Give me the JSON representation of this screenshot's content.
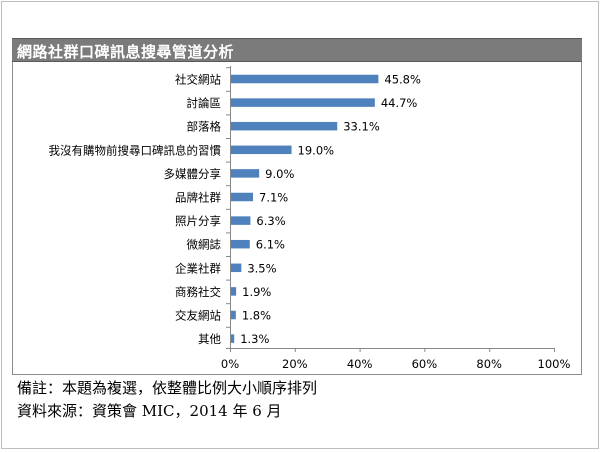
{
  "title": "網路社群口碑訊息搜尋管道分析",
  "chart_data": {
    "type": "bar",
    "orientation": "horizontal",
    "categories": [
      "社交網站",
      "討論區",
      "部落格",
      "我沒有購物前搜尋口碑訊息的習慣",
      "多媒體分享",
      "品牌社群",
      "照片分享",
      "微網誌",
      "企業社群",
      "商務社交",
      "交友網站",
      "其他"
    ],
    "values": [
      45.8,
      44.7,
      33.1,
      19.0,
      9.0,
      7.1,
      6.3,
      6.1,
      3.5,
      1.9,
      1.8,
      1.3
    ],
    "value_labels": [
      "45.8%",
      "44.7%",
      "33.1%",
      "19.0%",
      "9.0%",
      "7.1%",
      "6.3%",
      "6.1%",
      "3.5%",
      "1.9%",
      "1.8%",
      "1.3%"
    ],
    "xlim": [
      0,
      100
    ],
    "x_ticks": [
      "0%",
      "20%",
      "40%",
      "60%",
      "80%",
      "100%"
    ],
    "xlabel": "",
    "ylabel": "",
    "grid": false,
    "bar_color": "#4f81bd"
  },
  "footnotes": {
    "note": "備註：本題為複選，依整體比例大小順序排列",
    "source": "資料來源：資策會 MIC，2014 年 6 月"
  }
}
